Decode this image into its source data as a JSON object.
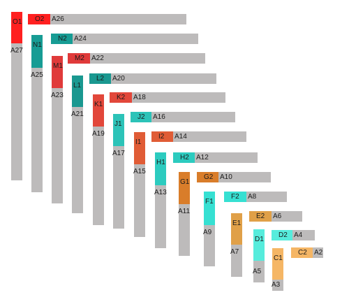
{
  "colors": {
    "O": "#ff2020",
    "N": "#179c94",
    "M": "#e03a3a",
    "L": "#1a9890",
    "K": "#e2473a",
    "J": "#2cc3b8",
    "I": "#e05c36",
    "H": "#2ccbbf",
    "G": "#d97d2a",
    "F": "#36e0d2",
    "E": "#e0a048",
    "D": "#56ecdc",
    "C": "#f5b665",
    "gray": "#bdbbbb"
  },
  "pairs": [
    {
      "group": "O",
      "v_label": "O1",
      "v_gray": "A27",
      "h_label": "O2",
      "h_gray": "A26"
    },
    {
      "group": "N",
      "v_label": "N1",
      "v_gray": "A25",
      "h_label": "N2",
      "h_gray": "A24"
    },
    {
      "group": "M",
      "v_label": "M1",
      "v_gray": "A23",
      "h_label": "M2",
      "h_gray": "A22"
    },
    {
      "group": "L",
      "v_label": "L1",
      "v_gray": "A21",
      "h_label": "L2",
      "h_gray": "A20"
    },
    {
      "group": "K",
      "v_label": "K1",
      "v_gray": "A19",
      "h_label": "K2",
      "h_gray": "A18"
    },
    {
      "group": "J",
      "v_label": "J1",
      "v_gray": "A17",
      "h_label": "J2",
      "h_gray": "A16"
    },
    {
      "group": "I",
      "v_label": "I1",
      "v_gray": "A15",
      "h_label": "I2",
      "h_gray": "A14"
    },
    {
      "group": "H",
      "v_label": "H1",
      "v_gray": "A13",
      "h_label": "H2",
      "h_gray": "A12"
    },
    {
      "group": "G",
      "v_label": "G1",
      "v_gray": "A11",
      "h_label": "G2",
      "h_gray": "A10"
    },
    {
      "group": "F",
      "v_label": "F1",
      "v_gray": "A9",
      "h_label": "F2",
      "h_gray": "A8"
    },
    {
      "group": "E",
      "v_label": "E1",
      "v_gray": "A7",
      "h_label": "E2",
      "h_gray": "A6"
    },
    {
      "group": "D",
      "v_label": "D1",
      "v_gray": "A5",
      "h_label": "D2",
      "h_gray": "A4"
    },
    {
      "group": "C",
      "v_label": "C1",
      "v_gray": "A3",
      "h_label": "C2",
      "h_gray": "A2"
    }
  ]
}
